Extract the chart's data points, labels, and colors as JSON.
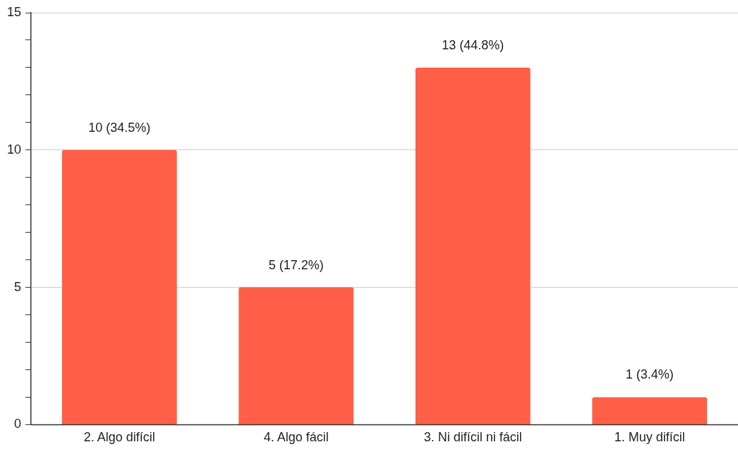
{
  "chart_data": {
    "type": "bar",
    "categories": [
      "2. Algo difícil",
      "4. Algo fácil",
      "3. Ni difícil ni fácil",
      "1. Muy difícil"
    ],
    "values": [
      10,
      5,
      13,
      1
    ],
    "value_labels": [
      "10 (34.5%)",
      "5 (17.2%)",
      "13 (44.8%)",
      "1 (3.4%)"
    ],
    "color": "#ff5e47",
    "ylim": [
      0,
      15
    ],
    "yticks": [
      0,
      {
        "value": 1,
        "label": null
      },
      {
        "value": 2,
        "label": null
      },
      {
        "value": 3,
        "label": null
      },
      {
        "value": 4,
        "label": null
      },
      5,
      {
        "value": 6,
        "label": null
      },
      {
        "value": 7,
        "label": null
      },
      {
        "value": 8,
        "label": null
      },
      {
        "value": 9,
        "label": null
      },
      10,
      {
        "value": 11,
        "label": null
      },
      {
        "value": 12,
        "label": null
      },
      {
        "value": 13,
        "label": null
      },
      {
        "value": 14,
        "label": null
      },
      15
    ],
    "grid": "y",
    "legend": false
  }
}
